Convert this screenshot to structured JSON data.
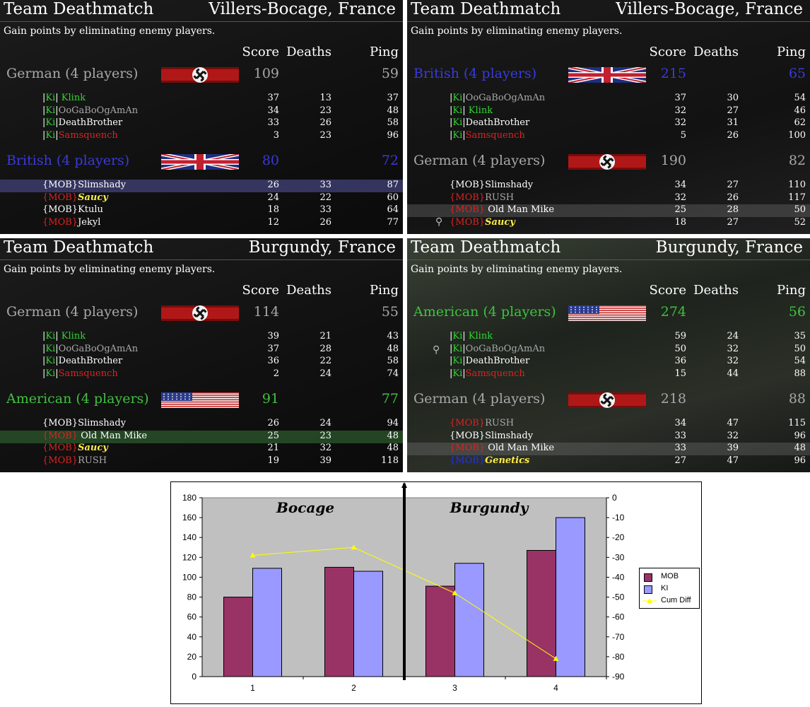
{
  "header_columns": {
    "score": "Score",
    "deaths": "Deaths",
    "ping": "Ping"
  },
  "panels": [
    {
      "mode": "Team Deathmatch",
      "map": "Villers-Bocage, France",
      "desc": "Gain points by eliminating enemy players.",
      "teams": [
        {
          "name": "German (4 players)",
          "flag": "german",
          "score": "109",
          "ping": "59",
          "players": [
            {
              "tag": "|Ki|",
              "name": " Klink",
              "score": "37",
              "deaths": "13",
              "ping": "37"
            },
            {
              "tag": "|Ki|",
              "name": "OoGaBoOgAmAn",
              "score": "34",
              "deaths": "23",
              "ping": "48"
            },
            {
              "tag": "|Ki|",
              "name": "DeathBrother",
              "score": "33",
              "deaths": "26",
              "ping": "58"
            },
            {
              "tag": "|Ki|",
              "name": "Samsquench",
              "score": "3",
              "deaths": "23",
              "ping": "96"
            }
          ]
        },
        {
          "name": "British (4 players)",
          "flag": "british",
          "score": "80",
          "ping": "72",
          "players": [
            {
              "tag": "{MOB}",
              "name": "Slimshady",
              "score": "26",
              "deaths": "33",
              "ping": "87"
            },
            {
              "tag": "{MOB}",
              "name": "Saucy",
              "score": "24",
              "deaths": "22",
              "ping": "60"
            },
            {
              "tag": "{MOB}",
              "name": "Ktulu",
              "score": "18",
              "deaths": "33",
              "ping": "64"
            },
            {
              "tag": "{MOB}",
              "name": "Jekyl",
              "score": "12",
              "deaths": "26",
              "ping": "77"
            }
          ]
        }
      ]
    },
    {
      "mode": "Team Deathmatch",
      "map": "Villers-Bocage, France",
      "desc": "Gain points by eliminating enemy players.",
      "teams": [
        {
          "name": "British (4 players)",
          "flag": "british",
          "score": "215",
          "ping": "65",
          "players": [
            {
              "tag": "|Ki|",
              "name": "OoGaBoOgAmAn",
              "score": "37",
              "deaths": "30",
              "ping": "54"
            },
            {
              "tag": "|Ki|",
              "name": " Klink",
              "score": "32",
              "deaths": "27",
              "ping": "46"
            },
            {
              "tag": "|Ki|",
              "name": "DeathBrother",
              "score": "32",
              "deaths": "31",
              "ping": "62"
            },
            {
              "tag": "|Ki|",
              "name": "Samsquench",
              "score": "5",
              "deaths": "26",
              "ping": "100"
            }
          ]
        },
        {
          "name": "German (4 players)",
          "flag": "german",
          "score": "190",
          "ping": "82",
          "players": [
            {
              "tag": "{MOB}",
              "name": "Slimshady",
              "score": "34",
              "deaths": "27",
              "ping": "110"
            },
            {
              "tag": "{MOB}",
              "name": "RUSH",
              "score": "32",
              "deaths": "26",
              "ping": "117"
            },
            {
              "tag": "{MOB}",
              "name": " Old Man Mike",
              "score": "25",
              "deaths": "28",
              "ping": "50"
            },
            {
              "tag": "{MOB}",
              "name": "Saucy",
              "score": "18",
              "deaths": "27",
              "ping": "52"
            }
          ]
        }
      ]
    },
    {
      "mode": "Team Deathmatch",
      "map": "Burgundy, France",
      "desc": "Gain points by eliminating enemy players.",
      "teams": [
        {
          "name": "German (4 players)",
          "flag": "german",
          "score": "114",
          "ping": "55",
          "players": [
            {
              "tag": "|Ki|",
              "name": " Klink",
              "score": "39",
              "deaths": "21",
              "ping": "43"
            },
            {
              "tag": "|Ki|",
              "name": "OoGaBoOgAmAn",
              "score": "37",
              "deaths": "28",
              "ping": "48"
            },
            {
              "tag": "|Ki|",
              "name": "DeathBrother",
              "score": "36",
              "deaths": "22",
              "ping": "58"
            },
            {
              "tag": "|Ki|",
              "name": "Samsquench",
              "score": "2",
              "deaths": "24",
              "ping": "74"
            }
          ]
        },
        {
          "name": "American (4 players)",
          "flag": "american",
          "score": "91",
          "ping": "77",
          "players": [
            {
              "tag": "{MOB}",
              "name": "Slimshady",
              "score": "26",
              "deaths": "24",
              "ping": "94"
            },
            {
              "tag": "{MOB}",
              "name": " Old Man Mike",
              "score": "25",
              "deaths": "23",
              "ping": "48"
            },
            {
              "tag": "{MOB}",
              "name": "Saucy",
              "score": "21",
              "deaths": "32",
              "ping": "48"
            },
            {
              "tag": "{MOB}",
              "name": "RUSH",
              "score": "19",
              "deaths": "39",
              "ping": "118"
            }
          ]
        }
      ]
    },
    {
      "mode": "Team Deathmatch",
      "map": "Burgundy, France",
      "desc": "Gain points by eliminating enemy players.",
      "teams": [
        {
          "name": "American (4 players)",
          "flag": "american",
          "score": "274",
          "ping": "56",
          "players": [
            {
              "tag": "|Ki|",
              "name": " Klink",
              "score": "59",
              "deaths": "24",
              "ping": "35"
            },
            {
              "tag": "|Ki|",
              "name": "OoGaBoOgAmAn",
              "score": "50",
              "deaths": "32",
              "ping": "50"
            },
            {
              "tag": "|Ki|",
              "name": "DeathBrother",
              "score": "36",
              "deaths": "32",
              "ping": "54"
            },
            {
              "tag": "|Ki|",
              "name": "Samsquench",
              "score": "15",
              "deaths": "44",
              "ping": "88"
            }
          ]
        },
        {
          "name": "German (4 players)",
          "flag": "german",
          "score": "218",
          "ping": "88",
          "players": [
            {
              "tag": "{MOB}",
              "name": "RUSH",
              "score": "34",
              "deaths": "47",
              "ping": "115"
            },
            {
              "tag": "{MOB}",
              "name": "Slimshady",
              "score": "33",
              "deaths": "32",
              "ping": "96"
            },
            {
              "tag": "{MOB}",
              "name": " Old Man Mike",
              "score": "33",
              "deaths": "39",
              "ping": "48"
            },
            {
              "tag": "{MOB}",
              "name": "Genetics",
              "score": "27",
              "deaths": "47",
              "ping": "96"
            }
          ]
        }
      ]
    }
  ],
  "chart_data": {
    "type": "bar",
    "categories": [
      "1",
      "2",
      "3",
      "4"
    ],
    "series": [
      {
        "name": "MOB",
        "values": [
          80,
          110,
          91,
          127
        ],
        "color": "#993366"
      },
      {
        "name": "KI",
        "values": [
          109,
          106,
          114,
          160
        ],
        "color": "#9999ff"
      }
    ],
    "line_series": {
      "name": "Cum Diff",
      "values": [
        -29,
        -25,
        -48,
        -81
      ],
      "color": "#ffff00",
      "axis": "secondary"
    },
    "ylim": [
      0,
      180
    ],
    "yticks": [
      "0",
      "20",
      "40",
      "60",
      "80",
      "100",
      "120",
      "140",
      "160",
      "180"
    ],
    "y2lim": [
      -90,
      0
    ],
    "y2ticks": [
      "0",
      "-10",
      "-20",
      "-30",
      "-40",
      "-50",
      "-60",
      "-70",
      "-80",
      "-90"
    ],
    "regions": [
      "Bocage",
      "Burgundy"
    ],
    "plot_background": "#c0c0c0",
    "legend_position": "right"
  }
}
